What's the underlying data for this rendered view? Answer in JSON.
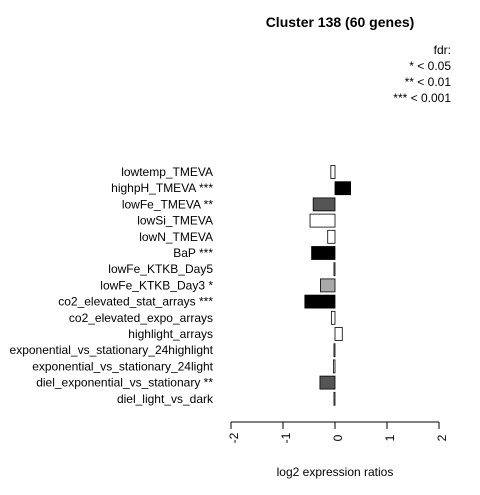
{
  "chart_data": {
    "type": "bar",
    "orientation": "horizontal",
    "title": "Cluster 138 (60 genes)",
    "legend": {
      "title": "fdr:",
      "entries": [
        "* < 0.05",
        "** < 0.01",
        "*** < 0.001"
      ]
    },
    "xlabel": "log2 expression ratios",
    "xlim": [
      -2,
      2
    ],
    "xticks": [
      -2,
      -1,
      0,
      1,
      2
    ],
    "categories": [
      "lowtemp_TMEVA",
      "highpH_TMEVA ***",
      "lowFe_TMEVA **",
      "lowSi_TMEVA",
      "lowN_TMEVA",
      "BaP ***",
      "lowFe_KTKB_Day5",
      "lowFe_KTKB_Day3 *",
      "co2_elevated_stat_arrays ***",
      "co2_elevated_expo_arrays",
      "highlight_arrays",
      "exponential_vs_stationary_24highlight",
      "exponential_vs_stationary_24light",
      "diel_exponential_vs_stationary **",
      "diel_light_vs_dark"
    ],
    "values": [
      -0.08,
      0.3,
      -0.42,
      -0.48,
      -0.14,
      -0.45,
      -0.02,
      -0.28,
      -0.58,
      -0.07,
      0.14,
      -0.02,
      -0.03,
      -0.29,
      -0.02
    ],
    "fill_colors": [
      "#ffffff",
      "#000000",
      "#555555",
      "#ffffff",
      "#ffffff",
      "#000000",
      "#ffffff",
      "#aaaaaa",
      "#000000",
      "#ffffff",
      "#ffffff",
      "#ffffff",
      "#ffffff",
      "#555555",
      "#ffffff"
    ]
  }
}
